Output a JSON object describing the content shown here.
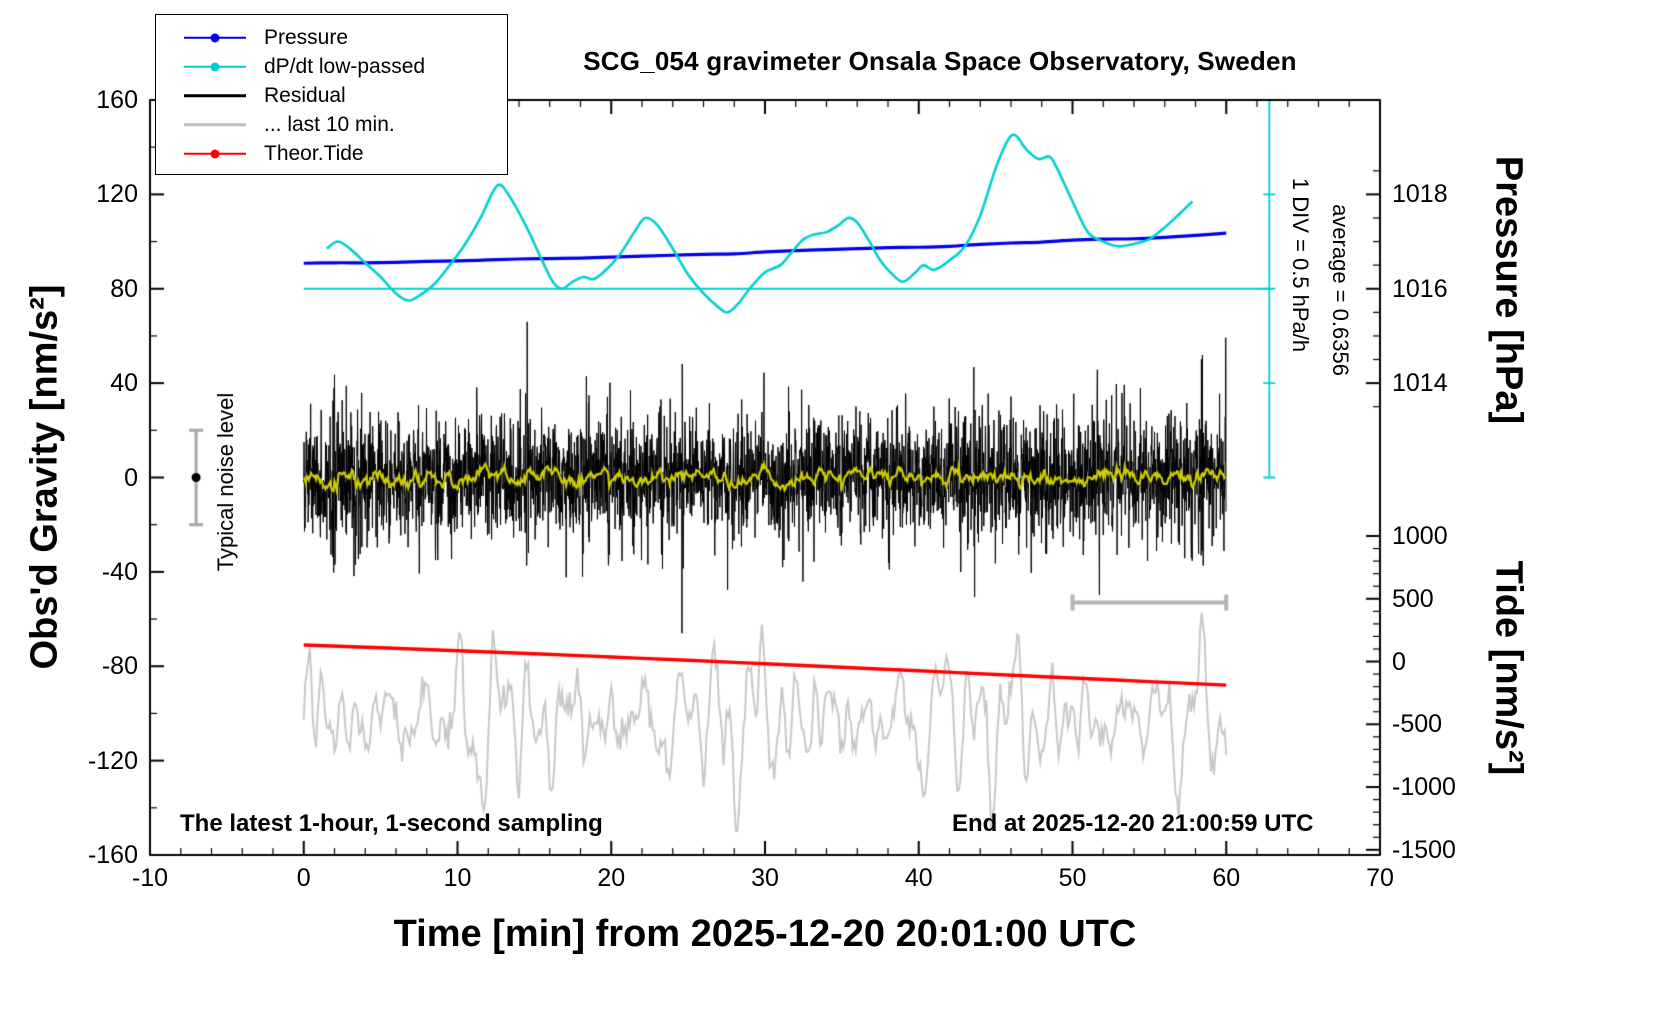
{
  "title": "SCG_054 gravimeter Onsala Space Observatory, Sweden",
  "legend": {
    "items": [
      {
        "label": "Pressure",
        "color": "#0000E6",
        "marker": "dot-line",
        "thickness": 2.5
      },
      {
        "label": "dP/dt low-passed",
        "color": "#00CFCF",
        "marker": "dot-line",
        "thickness": 2.5
      },
      {
        "label": "Residual",
        "color": "#000000",
        "marker": "line",
        "thickness": 3.5
      },
      {
        "label": "... last 10 min.",
        "color": "#BEBEBE",
        "marker": "line",
        "thickness": 3.5
      },
      {
        "label": "Theor.Tide",
        "color": "#FF0000",
        "marker": "dot-line",
        "thickness": 2.5
      }
    ]
  },
  "annotations": {
    "div_scale": "1 DIV = 0.5 hPa/h",
    "average": "average = 0.6356",
    "noise_level": "Typical noise level",
    "sampling_note": "The latest 1-hour, 1-second sampling",
    "end_note": "End at 2025-12-20 21:00:59 UTC"
  },
  "chart_data": {
    "type": "line",
    "x_range": [
      -10,
      70
    ],
    "gravity_range": [
      -160,
      160
    ],
    "axes": {
      "time": {
        "label": "Time [min] from 2025-12-20 20:01:00 UTC",
        "ticks": [
          -10,
          0,
          10,
          20,
          30,
          40,
          50,
          60,
          70
        ],
        "minor_step": 2
      },
      "gravity": {
        "label": "Obs'd Gravity [nm/s²]",
        "ticks": [
          160,
          120,
          80,
          40,
          0,
          -40,
          -80,
          -120,
          -160
        ],
        "minor_step": 20
      },
      "pressure": {
        "label": "Pressure [hPa]",
        "ticks": [
          1018,
          1016,
          1014
        ],
        "minor_step": 0.5,
        "ref_value": 1016,
        "ref_gravity": 80,
        "gravity_per_hpa": 20
      },
      "tide": {
        "label": "Tide [nm/s²]",
        "ticks": [
          1000,
          500,
          0,
          -500,
          -1000,
          -1500
        ],
        "minor_step": 100,
        "ref_gravity": -78,
        "gravity_per_unit": 0.0532
      }
    },
    "series": [
      {
        "name": "Pressure",
        "axis": "pressure",
        "color": "#0000E6",
        "width": 3.2,
        "x": [
          0,
          2,
          4,
          6,
          8,
          10,
          12,
          14,
          16,
          18,
          20,
          22,
          24,
          26,
          28,
          30,
          32,
          34,
          36,
          38,
          40,
          42,
          44,
          46,
          48,
          50,
          52,
          54,
          56,
          58,
          60
        ],
        "y": [
          1016.54,
          1016.55,
          1016.55,
          1016.56,
          1016.58,
          1016.59,
          1016.61,
          1016.63,
          1016.64,
          1016.65,
          1016.67,
          1016.69,
          1016.71,
          1016.73,
          1016.74,
          1016.78,
          1016.81,
          1016.83,
          1016.85,
          1016.87,
          1016.88,
          1016.9,
          1016.94,
          1016.97,
          1016.99,
          1017.03,
          1017.05,
          1017.06,
          1017.09,
          1017.13,
          1017.18
        ]
      },
      {
        "name": "dP/dt low-passed",
        "axis": "gravity",
        "color": "#00CFCF",
        "width": 2.6,
        "x": [
          1.5,
          2.2,
          3,
          4,
          5,
          6,
          6.8,
          7.5,
          8.5,
          9.5,
          10.5,
          11.5,
          12.3,
          12.8,
          13.5,
          14.5,
          15.5,
          16.2,
          16.8,
          17.5,
          18.2,
          18.8,
          19.5,
          20.5,
          21.5,
          22.2,
          23,
          24,
          25,
          26,
          27,
          27.6,
          28.3,
          29,
          30,
          31,
          31.8,
          32.5,
          33.2,
          34,
          34.8,
          35.4,
          36,
          36.8,
          37.5,
          38.3,
          39,
          39.8,
          40.3,
          41,
          42,
          43,
          44,
          45,
          45.8,
          46.3,
          47,
          47.8,
          48.5,
          49,
          50,
          51,
          52,
          53,
          54,
          55,
          56,
          57,
          57.8
        ],
        "y": [
          97,
          100,
          97,
          91,
          85,
          78,
          75,
          77,
          82,
          90,
          99,
          110,
          121,
          124,
          118,
          106,
          92,
          83,
          80,
          83,
          85,
          84,
          87,
          94,
          104,
          110,
          107,
          97,
          86,
          78,
          72,
          70,
          74,
          80,
          87,
          90,
          96,
          101,
          103,
          104,
          107,
          110,
          108,
          100,
          92,
          86,
          83,
          87,
          90,
          88,
          92,
          98,
          111,
          131,
          143,
          145,
          139,
          135,
          136,
          131,
          117,
          104,
          100,
          98,
          99,
          101,
          106,
          112,
          117
        ]
      },
      {
        "name": "Residual",
        "axis": "gravity",
        "color": "#000000",
        "width": 1,
        "generate": {
          "kind": "noise",
          "n": 3600,
          "seed": 42,
          "std": 13,
          "burst_prob": 0.004,
          "burst_scale": 2.4,
          "burst_len": 10,
          "clip": 66
        }
      },
      {
        "name": "Residual low-passed",
        "axis": "gravity",
        "color": "#CCCC00",
        "width": 2.2,
        "generate": {
          "kind": "lowpass",
          "window": 40
        }
      },
      {
        "name": "... last 10 min.",
        "axis": "tide",
        "color": "#C8C8C8",
        "width": 2,
        "generate": {
          "kind": "oscillation",
          "n": 601,
          "seed": 7,
          "center": -470,
          "noise_std": 60,
          "clip": 880,
          "components": [
            {
              "period_s": 24,
              "amp": 330
            },
            {
              "period_s": 11,
              "amp": 300
            },
            {
              "period_s": 41,
              "amp": 180
            },
            {
              "period_s": 7,
              "amp": 110
            }
          ]
        }
      },
      {
        "name": "Theor.Tide",
        "axis": "tide",
        "color": "#FF0000",
        "width": 3.4,
        "x": [
          0,
          5,
          10,
          15,
          20,
          25,
          30,
          35,
          40,
          45,
          50,
          55,
          60
        ],
        "y": [
          132,
          110,
          86,
          62,
          36,
          10,
          -18,
          -46,
          -74,
          -103,
          -131,
          -160,
          -188
        ]
      }
    ],
    "reference": {
      "dpdt_zero_line": {
        "gravity": 80,
        "t_from": 0,
        "t_to": 62.8,
        "color": "#00CFCF"
      },
      "dpdt_scale_bar": {
        "t": 62.8,
        "gravity_from": 0,
        "gravity_to": 160,
        "div_gravity": 40,
        "color": "#00CFCF"
      },
      "last10_bracket": {
        "t_from": 50,
        "t_to": 60,
        "gravity": -53,
        "color": "#B4B4B4"
      },
      "noise_bar": {
        "t": -7,
        "gravity_center": 0,
        "gravity_half_range": 20,
        "bar_color": "#A8A8A8",
        "dot_color": "#000000"
      }
    }
  }
}
